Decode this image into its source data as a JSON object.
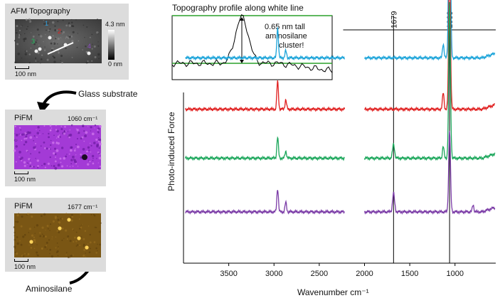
{
  "afm_panel": {
    "title": "AFM Topography",
    "colorbar_top": "4.3 nm",
    "colorbar_bottom": "0 nm",
    "scale": "100 nm",
    "markers": [
      "1",
      "2",
      "3",
      "4"
    ]
  },
  "arrow_labels": {
    "glass": "Glass substrate",
    "aminosilane": "Aminosilane"
  },
  "pifm_1060": {
    "title": "PiFM",
    "wavenumber": "1060 cm⁻¹",
    "scale": "100 nm"
  },
  "pifm_1677": {
    "title": "PiFM",
    "wavenumber": "1677 cm⁻¹",
    "scale": "100 nm"
  },
  "profile": {
    "title": "Topography profile along white line",
    "annotation": [
      "0.65 nm tall",
      "aminosilane",
      "cluster!"
    ]
  },
  "chart_data": {
    "type": "line",
    "ylabel": "Photo-induced Force",
    "xlabel": "Wavenumber cm⁻¹",
    "xlim": [
      4000,
      550
    ],
    "xticks": [
      3500,
      3000,
      2500,
      2000,
      1500,
      1000
    ],
    "vlines": [
      1679,
      1060
    ],
    "gap": [
      2220,
      2000
    ],
    "series_colors": [
      "#1aa3d9",
      "#e01f1f",
      "#1aa65a",
      "#7a3aa6"
    ],
    "series_baselines": [
      0.88,
      0.66,
      0.45,
      0.22
    ],
    "peaks": [
      [
        [
          2960,
          0.13
        ],
        [
          2870,
          0.03
        ],
        [
          1060,
          1.0
        ],
        [
          1130,
          0.06
        ]
      ],
      [
        [
          2960,
          0.12
        ],
        [
          2870,
          0.04
        ],
        [
          1060,
          0.64
        ],
        [
          1130,
          0.07
        ]
      ],
      [
        [
          2960,
          0.09
        ],
        [
          2870,
          0.03
        ],
        [
          1679,
          0.06
        ],
        [
          1060,
          0.67
        ],
        [
          1130,
          0.05
        ]
      ],
      [
        [
          2960,
          0.1
        ],
        [
          2870,
          0.04
        ],
        [
          1679,
          0.08
        ],
        [
          1060,
          0.35
        ],
        [
          800,
          0.03
        ]
      ]
    ]
  }
}
